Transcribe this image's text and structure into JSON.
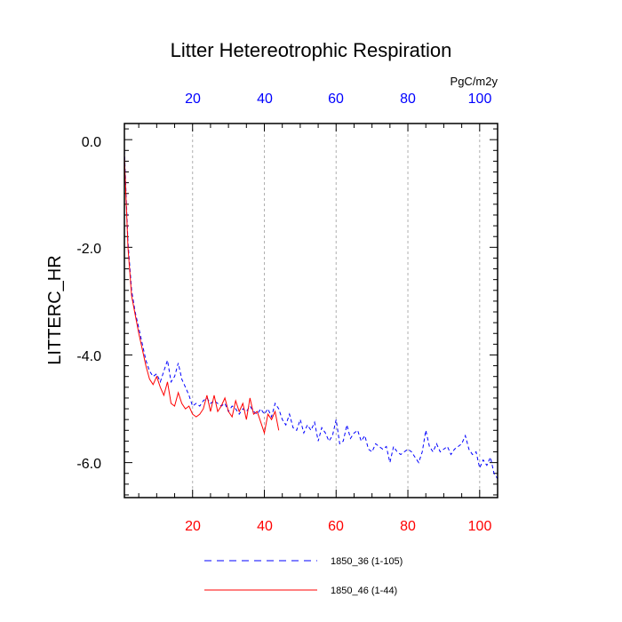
{
  "chart_data": {
    "type": "line",
    "title": "Litter Hetereotrophic Respiration",
    "ylabel": "LITTERC_HR",
    "units": "PgC/m2y",
    "xlim": [
      1,
      105
    ],
    "ylim": [
      -6.65,
      0.3
    ],
    "x_ticks": [
      20,
      40,
      60,
      80,
      100
    ],
    "x_tick_labels": [
      "20",
      "40",
      "60",
      "80",
      "100"
    ],
    "y_ticks": [
      0,
      -2,
      -4,
      -6
    ],
    "y_tick_labels": [
      "0.0",
      "-2.0",
      "-4.0",
      "-6.0"
    ],
    "grid": "vertical dashed at x ticks",
    "top_axis_color": "#0000ff",
    "bottom_axis_color": "#ff0000",
    "series": [
      {
        "name": "1850_36 (1-105)",
        "color": "#0000ff",
        "style": "dashed",
        "x_start": 1,
        "values": [
          -0.2,
          -1.9,
          -2.8,
          -3.2,
          -3.5,
          -3.8,
          -4.1,
          -4.3,
          -4.4,
          -4.35,
          -4.5,
          -4.3,
          -4.1,
          -4.5,
          -4.4,
          -4.15,
          -4.45,
          -4.6,
          -4.75,
          -4.95,
          -4.9,
          -4.95,
          -4.85,
          -4.8,
          -4.9,
          -4.85,
          -4.9,
          -4.95,
          -4.9,
          -5.05,
          -4.95,
          -5.0,
          -5.1,
          -5.0,
          -5.05,
          -4.95,
          -5.05,
          -5.1,
          -5.0,
          -5.1,
          -5.0,
          -5.15,
          -4.9,
          -5.0,
          -5.2,
          -5.3,
          -5.1,
          -5.35,
          -5.4,
          -5.2,
          -5.45,
          -5.3,
          -5.4,
          -5.25,
          -5.6,
          -5.35,
          -5.45,
          -5.6,
          -5.5,
          -5.2,
          -5.65,
          -5.6,
          -5.3,
          -5.55,
          -5.45,
          -5.4,
          -5.6,
          -5.5,
          -5.75,
          -5.8,
          -5.65,
          -5.7,
          -5.75,
          -5.7,
          -6.0,
          -5.7,
          -5.8,
          -5.85,
          -5.8,
          -5.75,
          -5.8,
          -5.9,
          -6.0,
          -5.8,
          -5.4,
          -5.7,
          -5.8,
          -5.65,
          -5.8,
          -5.75,
          -5.7,
          -5.85,
          -5.75,
          -5.7,
          -5.65,
          -5.5,
          -5.75,
          -5.85,
          -5.8,
          -6.1,
          -5.95,
          -6.05,
          -5.9,
          -6.2,
          -6.3
        ]
      },
      {
        "name": "1850_46 (1-44)",
        "color": "#ff0000",
        "style": "solid",
        "x_start": 1,
        "values": [
          -0.3,
          -2.0,
          -2.9,
          -3.25,
          -3.6,
          -3.9,
          -4.2,
          -4.45,
          -4.55,
          -4.4,
          -4.6,
          -4.75,
          -4.5,
          -4.9,
          -4.95,
          -4.7,
          -4.9,
          -5.0,
          -4.95,
          -5.1,
          -5.15,
          -5.1,
          -5.0,
          -4.75,
          -5.05,
          -4.75,
          -5.05,
          -4.95,
          -4.8,
          -5.05,
          -5.15,
          -4.85,
          -5.05,
          -4.9,
          -5.2,
          -4.8,
          -5.1,
          -5.05,
          -5.25,
          -5.45,
          -5.1,
          -5.2,
          -5.05,
          -5.4
        ]
      }
    ],
    "legend_position": "bottom-center"
  }
}
